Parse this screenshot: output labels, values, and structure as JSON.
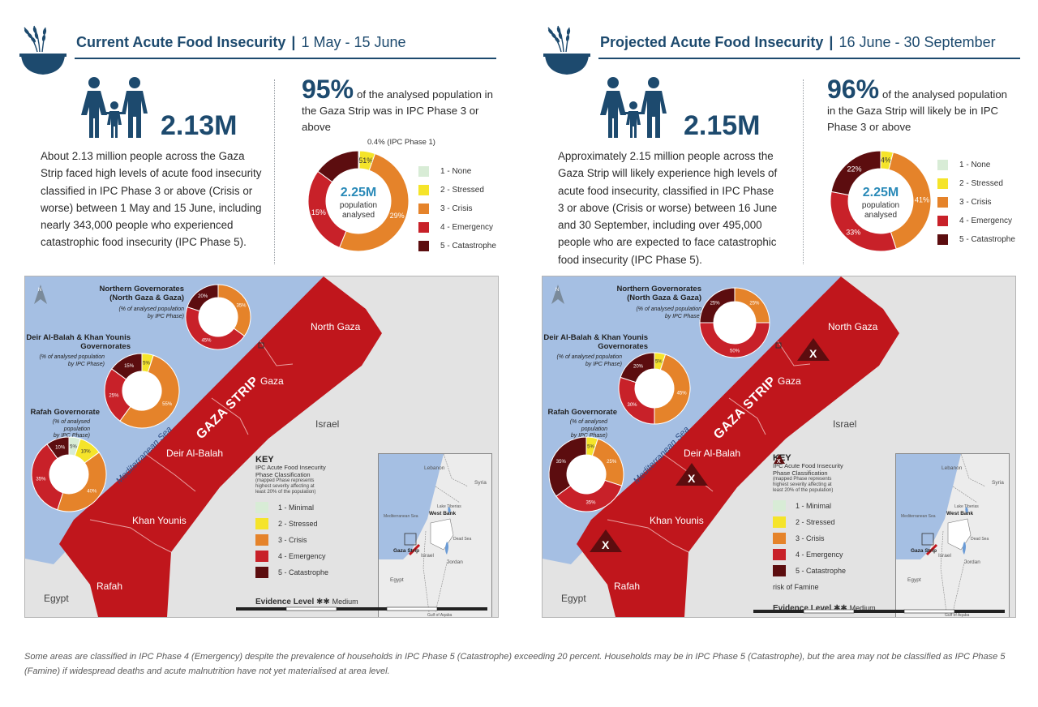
{
  "colors": {
    "navy": "#1d4a6e",
    "phase1": "#d8ecd6",
    "phase2": "#f5e42a",
    "phase3": "#e5832a",
    "phase4": "#c82129",
    "phase5": "#5c0d0f",
    "sea": "#a5bfe3",
    "land": "#e3e3e3",
    "accent_teal": "#2a8ab8"
  },
  "current": {
    "title": "Current Acute Food Insecurity",
    "separator": "|",
    "date_range": "1 May - 15 June",
    "headline_number": "2.13M",
    "description": "About 2.13 million people across the Gaza Strip faced high levels of acute food insecurity classified in IPC Phase 3 or above (Crisis or worse) between 1 May and 15 June, including nearly 343,000 people who experienced catastrophic food insecurity (IPC Phase 5).",
    "percent": "95%",
    "percent_text": "of the analysed population in the Gaza Strip was in IPC Phase 3 or above",
    "donut_center_value": "2.25M",
    "donut_center_line1": "population",
    "donut_center_line2": "analysed",
    "ipc1_note": "0.4% (IPC Phase 1)",
    "donut_labels": [
      "5%",
      "51%",
      "29%",
      "15%"
    ]
  },
  "projected": {
    "title": "Projected Acute Food Insecurity",
    "separator": "|",
    "date_range": "16 June - 30 September",
    "headline_number": "2.15M",
    "description": "Approximately 2.15 million people across the Gaza Strip will likely experience high levels of acute food insecurity, classified in IPC Phase 3 or above (Crisis or worse) between 16 June and 30 September, including over 495,000 people who are expected to face catastrophic food insecurity (IPC Phase 5).",
    "percent": "96%",
    "percent_text": "of the analysed population in the Gaza Strip will likely be in IPC Phase 3 or above",
    "donut_center_value": "2.25M",
    "donut_center_line1": "population",
    "donut_center_line2": "analysed",
    "donut_labels": [
      "4%",
      "41%",
      "33%",
      "22%"
    ]
  },
  "legend_top": [
    "1 - None",
    "2 - Stressed",
    "3 - Crisis",
    "4 - Emergency",
    "5 - Catastrophe"
  ],
  "map": {
    "north_gaza": "North Gaza",
    "gaza": "Gaza",
    "deir": "Deir Al-Balah",
    "khan": "Khan Younis",
    "rafah": "Rafah",
    "israel": "Israel",
    "egypt": "Egypt",
    "strip_label": "GAZA STRIP",
    "sea_label": "Mediterranean Sea",
    "gov_northern": "Northern Governorates\n(North Gaza & Gaza)",
    "gov_deir": "Deir Al-Balah & Khan Younis\nGovernorates",
    "gov_rafah": "Rafah Governorate",
    "gov_note": "(% of analysed population\nby IPC Phase)",
    "key_title": "KEY",
    "key_subtitle": "IPC Acute Food Insecurity\nPhase Classification",
    "key_note": "(mapped Phase represents\nhighest severity affecting at\nleast 20% of the population)",
    "key_items": [
      "1 - Minimal",
      "2 - Stressed",
      "3 - Crisis",
      "4 - Emergency",
      "5 - Catastrophe"
    ],
    "famine_risk": "risk of Famine",
    "famine_marker": "X",
    "evidence_label": "Evidence Level",
    "evidence_stars": "✱✱",
    "evidence_value": "Medium",
    "inset": {
      "lebanon": "Lebanon",
      "syria": "Syria",
      "lake_tiberias": "Lake Tiberias",
      "west_bank": "West Bank",
      "dead_sea": "Dead Sea",
      "israel": "Israel",
      "jordan": "Jordan",
      "egypt": "Egypt",
      "gaza_strip": "Gaza Strip",
      "med_sea": "Mediterranean Sea",
      "gulf": "Gulf of Aqaba"
    },
    "scale_ticks": [
      "0",
      "2.5",
      "5",
      "10",
      "15",
      "20 km"
    ]
  },
  "chart_data": [
    {
      "type": "pie",
      "title": "Current overall population analysed",
      "categories": [
        "1 - None",
        "2 - Stressed",
        "3 - Crisis",
        "4 - Emergency",
        "5 - Catastrophe"
      ],
      "values": [
        0.4,
        5,
        51,
        29,
        15
      ]
    },
    {
      "type": "pie",
      "title": "Projected overall population analysed",
      "categories": [
        "1 - None",
        "2 - Stressed",
        "3 - Crisis",
        "4 - Emergency",
        "5 - Catastrophe"
      ],
      "values": [
        0,
        4,
        41,
        33,
        22
      ]
    },
    {
      "type": "pie",
      "title": "Current Northern Governorates",
      "categories": [
        "3 - Crisis",
        "4 - Emergency",
        "5 - Catastrophe"
      ],
      "values": [
        35,
        45,
        20
      ]
    },
    {
      "type": "pie",
      "title": "Current Deir Al-Balah & Khan Younis",
      "categories": [
        "2 - Stressed",
        "3 - Crisis",
        "4 - Emergency",
        "5 - Catastrophe"
      ],
      "values": [
        5,
        55,
        25,
        15
      ]
    },
    {
      "type": "pie",
      "title": "Current Rafah",
      "categories": [
        "1 - Minimal",
        "2 - Stressed",
        "3 - Crisis",
        "4 - Emergency",
        "5 - Catastrophe"
      ],
      "values": [
        5,
        10,
        40,
        35,
        10
      ]
    },
    {
      "type": "pie",
      "title": "Projected Northern Governorates",
      "categories": [
        "3 - Crisis",
        "4 - Emergency",
        "5 - Catastrophe"
      ],
      "values": [
        25,
        50,
        25
      ]
    },
    {
      "type": "pie",
      "title": "Projected Deir Al-Balah & Khan Younis",
      "categories": [
        "2 - Stressed",
        "3 - Crisis",
        "4 - Emergency",
        "5 - Catastrophe"
      ],
      "values": [
        5,
        45,
        30,
        20
      ]
    },
    {
      "type": "pie",
      "title": "Projected Rafah",
      "categories": [
        "2 - Stressed",
        "3 - Crisis",
        "4 - Emergency",
        "5 - Catastrophe"
      ],
      "values": [
        5,
        25,
        35,
        35
      ]
    }
  ],
  "footer": "Some areas are classified in IPC Phase 4 (Emergency) despite the prevalence of households in IPC Phase 5 (Catastrophe) exceeding 20 percent. Households may be in IPC Phase 5 (Catastrophe), but the area may not be classified as IPC Phase 5 (Famine) if widespread deaths and acute malnutrition have not yet materialised at area level."
}
